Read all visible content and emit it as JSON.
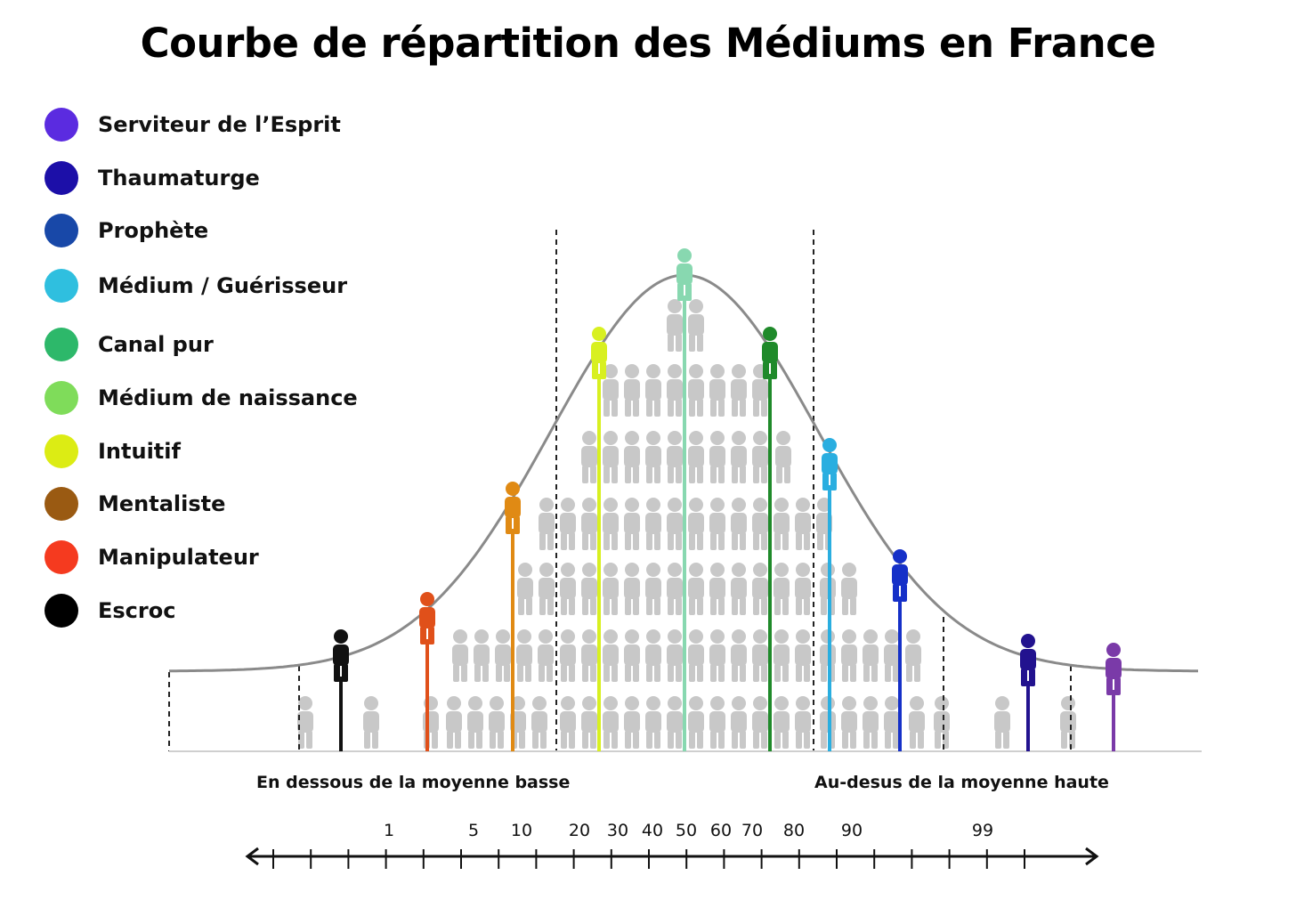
{
  "title": "Courbe de répartition des Médiums en France",
  "legend": [
    {
      "label": "Serviteur de l’Esprit",
      "color": "#5b2be0"
    },
    {
      "label": "Thaumaturge",
      "color": "#1c0fa8"
    },
    {
      "label": "Prophète",
      "color": "#1848a8"
    },
    {
      "label": "Médium / Guérisseur",
      "color": "#2fbfdf"
    },
    {
      "label": "Canal pur",
      "color": "#2db86a"
    },
    {
      "label": "Médium de naissance",
      "color": "#7fdc5a"
    },
    {
      "label": "Intuitif",
      "color": "#dcec14"
    },
    {
      "label": "Mentaliste",
      "color": "#9a5a12"
    },
    {
      "label": "Manipulateur",
      "color": "#f53a1f"
    },
    {
      "label": "Escroc",
      "color": "#000000"
    }
  ],
  "captions": {
    "below": "En dessous de la moyenne basse",
    "above": "Au-desus de la moyenne haute"
  },
  "scale_labels": [
    "1",
    "5",
    "10",
    "20",
    "30",
    "40",
    "50",
    "60",
    "70",
    "80",
    "90",
    "99"
  ],
  "figure_colors": {
    "escroc": "#111111",
    "manipulateur": "#e0501a",
    "mentaliste": "#e08a14",
    "intuitif": "#d8f020",
    "median": "#88d8b0",
    "canal": "#1f8a2a",
    "medium_guerisseur": "#2aaee0",
    "prophete": "#1530c8",
    "thaumaturge": "#22128f",
    "serviteur": "#7a3aa8",
    "crowd": "#c8c8c8",
    "curve": "#8a8a8a"
  }
}
